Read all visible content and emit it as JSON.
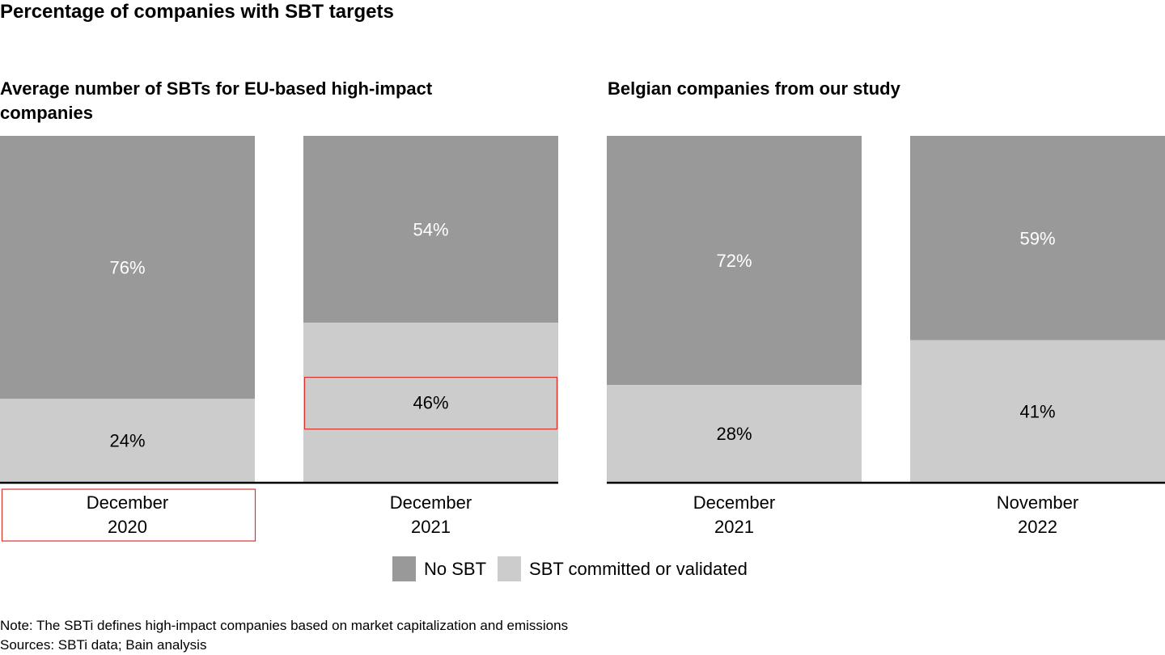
{
  "title": "Percentage of companies with SBT targets",
  "colors": {
    "no_sbt": "#999999",
    "committed": "#cccccc",
    "highlight": "#d9342b",
    "axis": "#000000"
  },
  "chart_data": {
    "type": "bar",
    "stacked": true,
    "normalized_percent": true,
    "series_order": [
      "SBT committed or validated",
      "No SBT"
    ],
    "panels": [
      {
        "title": "Average number of SBTs for EU-based high-impact companies",
        "categories": [
          {
            "line1": "December",
            "line2": "2020"
          },
          {
            "line1": "December",
            "line2": "2021"
          }
        ],
        "series": [
          {
            "name": "SBT committed or validated",
            "values": [
              24,
              46
            ],
            "labels": [
              "24%",
              "46%"
            ]
          },
          {
            "name": "No SBT",
            "values": [
              76,
              54
            ],
            "labels": [
              "76%",
              "54%"
            ]
          }
        ]
      },
      {
        "title": "Belgian companies from our study",
        "categories": [
          {
            "line1": "December",
            "line2": "2021"
          },
          {
            "line1": "November",
            "line2": "2022"
          }
        ],
        "series": [
          {
            "name": "SBT committed or validated",
            "values": [
              28,
              41
            ],
            "labels": [
              "28%",
              "41%"
            ]
          },
          {
            "name": "No SBT",
            "values": [
              72,
              59
            ],
            "labels": [
              "72%",
              "59%"
            ]
          }
        ]
      }
    ],
    "legend": [
      {
        "name": "No SBT",
        "color": "#999999"
      },
      {
        "name": "SBT committed or validated",
        "color": "#cccccc"
      }
    ],
    "legend_position": "bottom-center",
    "ylim": [
      0,
      100
    ],
    "grid": false
  },
  "notes": {
    "note": "Note: The SBTi defines high-impact companies based on market capitalization and emissions",
    "sources": "Sources: SBTi data; Bain analysis"
  }
}
